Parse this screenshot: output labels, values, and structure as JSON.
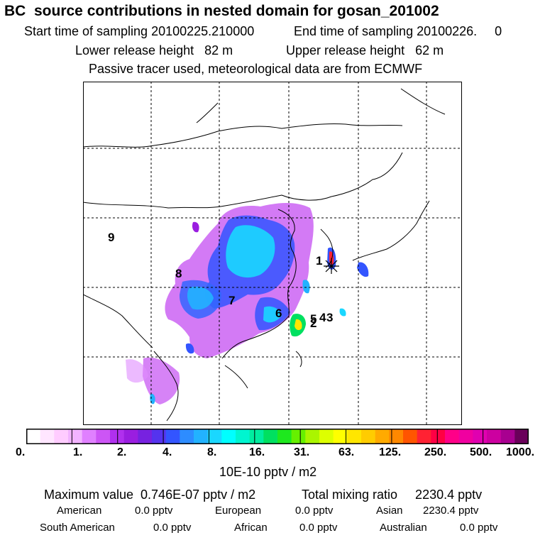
{
  "header": {
    "title": "BC  source contributions in nested domain for gosan_201002",
    "start_time": "Start time of sampling 20100225.210000",
    "end_time": "End time of sampling 20100226.     0",
    "lower_release": "Lower release height   82 m",
    "upper_release": "Upper release height   62 m",
    "note": "Passive tracer used, meteorological data are from ECMWF"
  },
  "map": {
    "region_labels": [
      "1",
      "2",
      "3",
      "4",
      "5",
      "6",
      "7",
      "8",
      "9"
    ],
    "receptor_marker": "asterisk-receptor"
  },
  "colorbar": {
    "colors": [
      "#ffffff",
      "#ffe6ff",
      "#ffccff",
      "#f2b3ff",
      "#e080ff",
      "#cc55f5",
      "#b030ee",
      "#9a1ee0",
      "#7722e0",
      "#5533ee",
      "#3355ff",
      "#2d8cff",
      "#22b2ff",
      "#1ad7ff",
      "#00ffff",
      "#00f5d0",
      "#00eda0",
      "#00e060",
      "#1ee81e",
      "#66f000",
      "#aaf500",
      "#ddff00",
      "#ffff00",
      "#ffe600",
      "#ffcc00",
      "#ffaa00",
      "#ff8800",
      "#ff5500",
      "#ff2233",
      "#ff0044",
      "#ff0088",
      "#f000a0",
      "#e000b0",
      "#cc00a0",
      "#a80090",
      "#6a005a"
    ],
    "tick_labels": [
      "0.",
      "1.",
      "2.",
      "4.",
      "8.",
      "16.",
      "31.",
      "63.",
      "125.",
      "250.",
      "500.",
      "1000."
    ],
    "units": "10E-10 pptv / m2"
  },
  "summary": {
    "maximum_value": "Maximum value  0.746E-07 pptv / m2",
    "total_mixing_ratio": "Total mixing ratio     2230.4 pptv",
    "row1": [
      {
        "label": "American",
        "value": "0.0 pptv"
      },
      {
        "label": "European",
        "value": "0.0 pptv"
      },
      {
        "label": "Asian",
        "value": "2230.4 pptv"
      }
    ],
    "row2": [
      {
        "label": "South American",
        "value": "0.0 pptv"
      },
      {
        "label": "African",
        "value": "0.0 pptv"
      },
      {
        "label": "Australian",
        "value": "0.0 pptv"
      }
    ]
  }
}
